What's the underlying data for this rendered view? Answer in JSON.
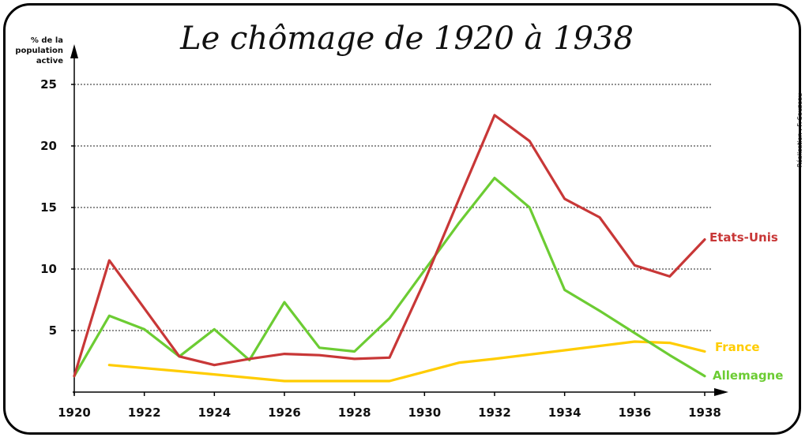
{
  "chart_data": {
    "type": "line",
    "title": "Le chômage de 1920 à 1938",
    "ylabel_lines": [
      "% de la",
      "population",
      "active"
    ],
    "credit": "Réalisation : F. Sauzeau",
    "xlim": [
      1920,
      1938
    ],
    "ylim": [
      0,
      25
    ],
    "x_ticks": [
      1920,
      1922,
      1924,
      1926,
      1928,
      1930,
      1932,
      1934,
      1936,
      1938
    ],
    "y_ticks": [
      5,
      10,
      15,
      20,
      25
    ],
    "grid": "horizontal dotted",
    "series": [
      {
        "name": "Etats-Unis",
        "color": "#c83737",
        "x": [
          1920,
          1921,
          1922,
          1923,
          1924,
          1925,
          1926,
          1927,
          1928,
          1929,
          1930,
          1931,
          1932,
          1933,
          1934,
          1935,
          1936,
          1937,
          1938
        ],
        "values": [
          1.3,
          10.7,
          6.8,
          2.9,
          2.2,
          2.7,
          3.1,
          3.0,
          2.7,
          2.8,
          9.0,
          15.8,
          22.5,
          20.4,
          15.7,
          14.2,
          10.3,
          9.4,
          12.4
        ]
      },
      {
        "name": "Allemagne",
        "color": "#6ccc33",
        "x": [
          1920,
          1921,
          1922,
          1923,
          1924,
          1925,
          1926,
          1927,
          1928,
          1929,
          1930,
          1931,
          1932,
          1933,
          1934,
          1935,
          1936,
          1937,
          1938
        ],
        "values": [
          1.3,
          6.2,
          5.1,
          2.9,
          5.1,
          2.6,
          7.3,
          3.6,
          3.3,
          6.0,
          9.9,
          13.8,
          17.4,
          15.0,
          8.3,
          6.6,
          4.8,
          3.0,
          1.3
        ]
      },
      {
        "name": "France",
        "color": "#ffcc00",
        "x": [
          1921,
          1923,
          1926,
          1929,
          1931,
          1932,
          1934,
          1936,
          1937,
          1938
        ],
        "values": [
          2.2,
          1.7,
          0.9,
          0.9,
          2.4,
          2.7,
          3.4,
          4.1,
          4.0,
          3.3
        ]
      }
    ]
  }
}
